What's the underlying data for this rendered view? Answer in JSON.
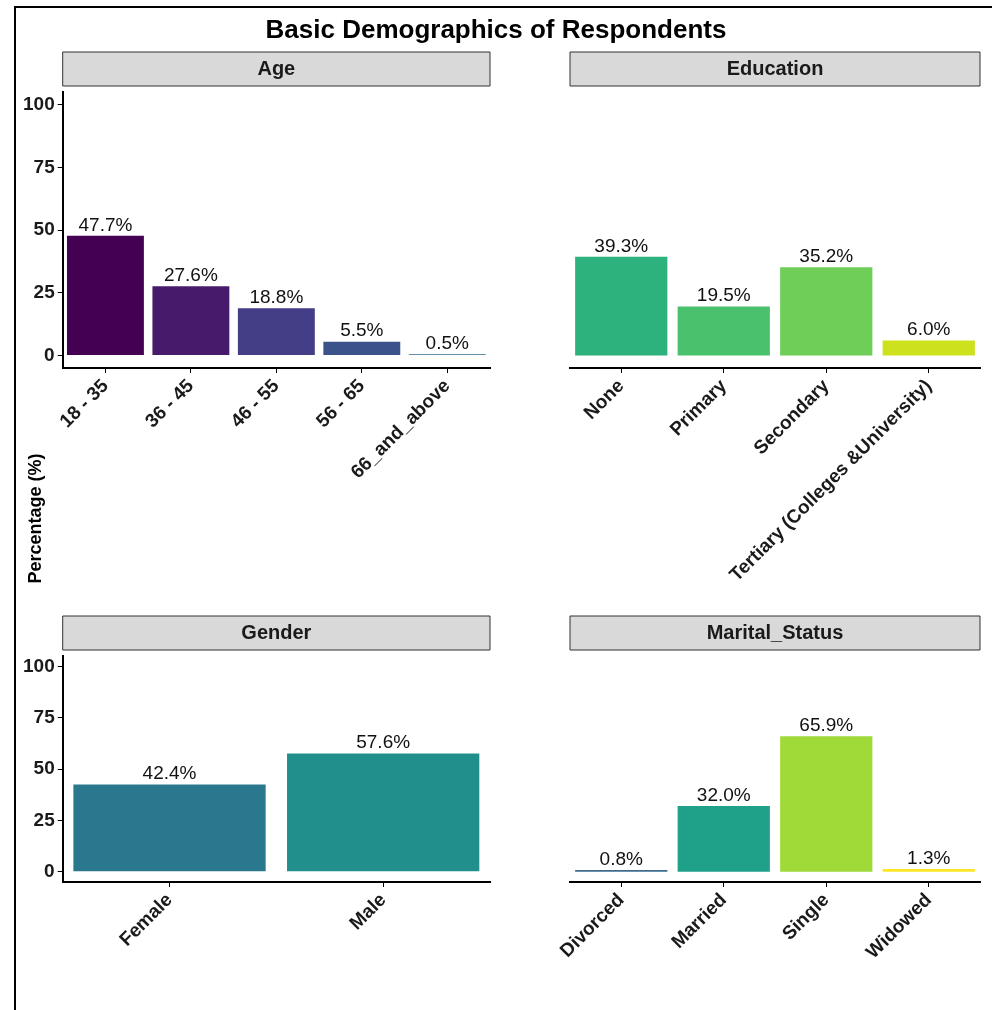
{
  "chart_data": [
    {
      "type": "bar",
      "title": "Basic Demographics of Respondents",
      "subtitle": "Age",
      "ylabel": "Percentage (%)",
      "categories": [
        "18 - 35",
        "36 - 45",
        "46 - 55",
        "56 - 65",
        "66_and_above"
      ],
      "values": [
        47.7,
        27.6,
        18.8,
        5.5,
        0.5
      ],
      "value_labels": [
        "47.7%",
        "27.6%",
        "18.8%",
        "5.5%",
        "0.5%"
      ],
      "colors": [
        "#440154",
        "#481a6c",
        "#433e85",
        "#3b528b",
        "#31688e"
      ],
      "ylim": [
        -5,
        105
      ],
      "yticks": [
        0,
        25,
        50,
        75,
        100
      ],
      "grid": false
    },
    {
      "type": "bar",
      "subtitle": "Education",
      "categories": [
        "None",
        "Primary",
        "Secondary",
        "Tertiary (Colleges &University)"
      ],
      "values": [
        39.3,
        19.5,
        35.2,
        6.0
      ],
      "value_labels": [
        "39.3%",
        "19.5%",
        "35.2%",
        "6.0%"
      ],
      "colors": [
        "#2db27d",
        "#4ac16d",
        "#6ece58",
        "#cde11d"
      ],
      "grid": false,
      "tick_labels": "x"
    },
    {
      "type": "bar",
      "subtitle": "Gender",
      "categories": [
        "Female",
        "Male"
      ],
      "values": [
        42.4,
        57.6
      ],
      "value_labels": [
        "42.4%",
        "57.6%"
      ],
      "colors": [
        "#2a788e",
        "#21908d"
      ],
      "ylim": [
        -5,
        105
      ],
      "yticks": [
        0,
        25,
        50,
        75,
        100
      ],
      "grid": false
    },
    {
      "type": "bar",
      "subtitle": "Marital_Status",
      "categories": [
        "Divorced",
        "Married",
        "Single",
        "Widowed"
      ],
      "values": [
        0.8,
        32.0,
        65.9,
        1.3
      ],
      "value_labels": [
        "0.8%",
        "32.0%",
        "65.9%",
        "1.3%"
      ],
      "colors": [
        "#3e6c8f",
        "#1fa088",
        "#a0da39",
        "#fde725"
      ],
      "grid": false,
      "tick_labels": "x"
    }
  ]
}
